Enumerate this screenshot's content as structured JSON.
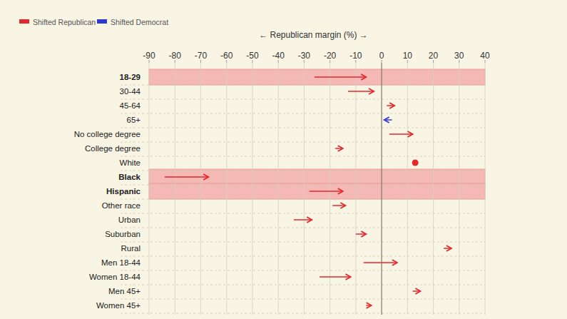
{
  "chart_data": {
    "type": "arrow",
    "xlabel": "← Republican margin (%) →",
    "categories": [
      "18-29",
      "30-44",
      "45-64",
      "65+",
      "No college degree",
      "College degree",
      "White",
      "Black",
      "Hispanic",
      "Other race",
      "Urban",
      "Suburban",
      "Rural",
      "Men 18-44",
      "Women 18-44",
      "Men 45+",
      "Women 45+"
    ],
    "from": [
      -26,
      -13,
      2,
      4,
      3,
      -18,
      13,
      -84,
      -28,
      -19,
      -34,
      -10,
      24,
      -7,
      -24,
      12,
      -6
    ],
    "to": [
      -6,
      -3,
      5,
      1,
      12,
      -15,
      13,
      -67,
      -15,
      -14,
      -27,
      -6,
      27,
      6,
      -12,
      15,
      -4
    ],
    "legend_items": [
      {
        "name": "Shifted Republican",
        "color": "#e5282c"
      },
      {
        "name": "Shifted Democrat",
        "color": "#2e3ad8"
      }
    ],
    "legend": "top-left",
    "xlim": [
      -90,
      40
    ],
    "xticks": [
      -90,
      -80,
      -70,
      -60,
      -50,
      -40,
      -30,
      -20,
      -10,
      0,
      10,
      20,
      30,
      40
    ],
    "grid": true
  }
}
